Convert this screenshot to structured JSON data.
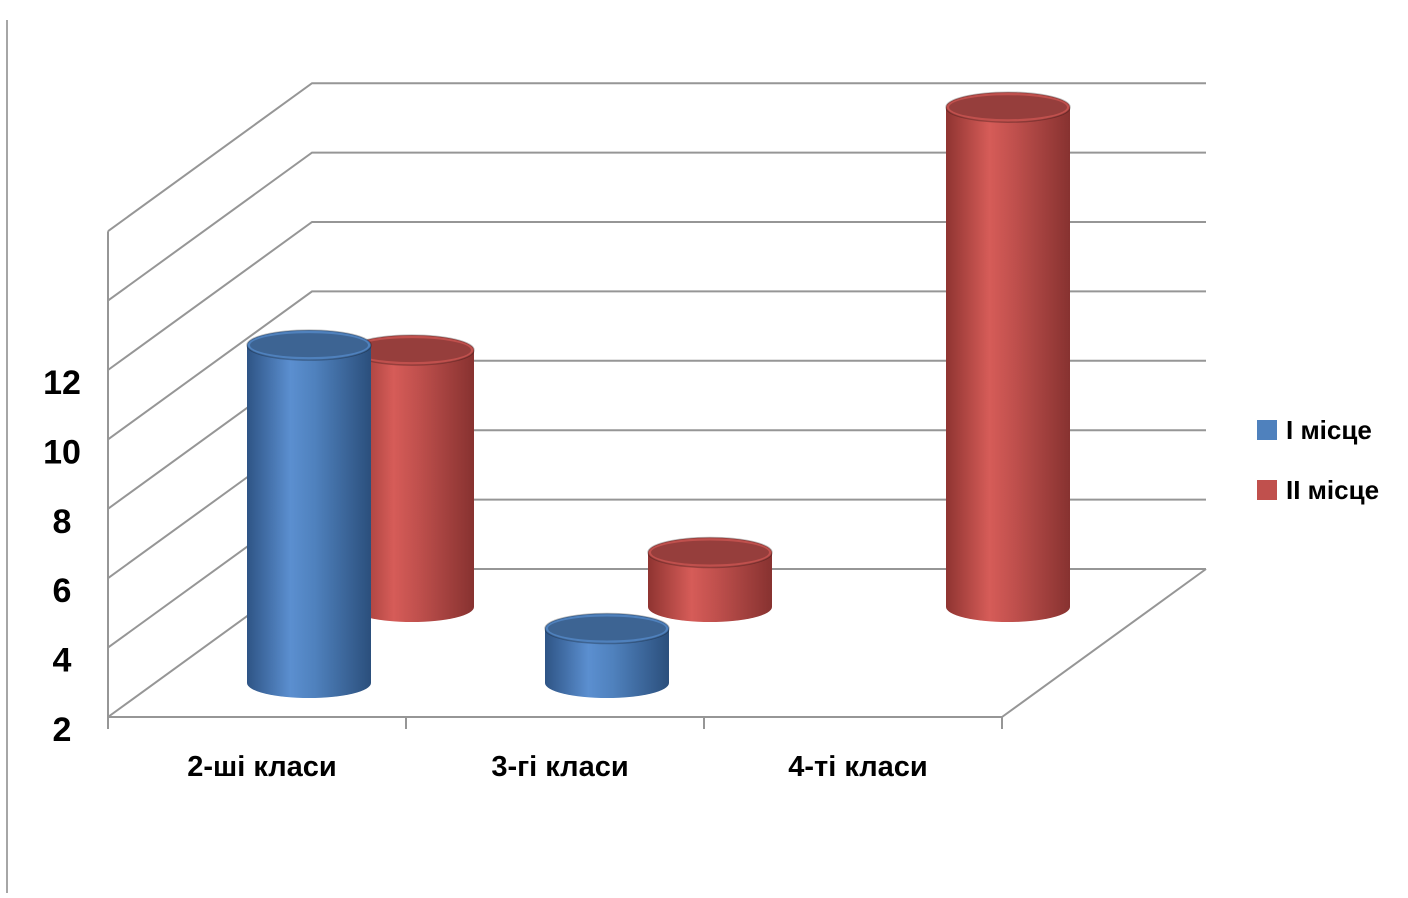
{
  "chart_data": {
    "type": "bar",
    "style": "3d-cylinder",
    "categories": [
      "2-ші класи",
      "3-гі класи",
      "4-ті класи"
    ],
    "series": [
      {
        "name": "І місце",
        "color": "#4f81bd",
        "values": [
          8,
          1,
          0
        ]
      },
      {
        "name": "ІІ місце",
        "color": "#c0504d",
        "values": [
          6,
          1,
          12
        ]
      }
    ],
    "y_ticks": [
      "2",
      "4",
      "6",
      "8",
      "10",
      "12"
    ],
    "ylim": [
      0,
      12
    ],
    "grid": true,
    "legend": "right"
  }
}
